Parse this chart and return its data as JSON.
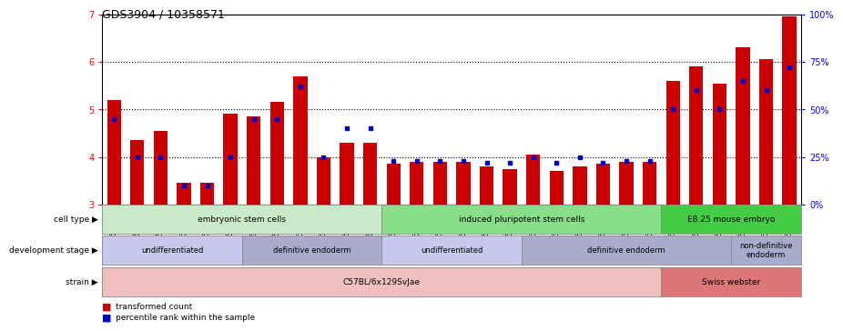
{
  "title": "GDS3904 / 10358571",
  "samples": [
    "GSM668567",
    "GSM668568",
    "GSM668569",
    "GSM668582",
    "GSM668583",
    "GSM668584",
    "GSM668564",
    "GSM668565",
    "GSM668566",
    "GSM668579",
    "GSM668580",
    "GSM668581",
    "GSM668585",
    "GSM668586",
    "GSM668587",
    "GSM668588",
    "GSM668589",
    "GSM668590",
    "GSM668576",
    "GSM668577",
    "GSM668578",
    "GSM668591",
    "GSM668592",
    "GSM668593",
    "GSM668573",
    "GSM668574",
    "GSM668575",
    "GSM668570",
    "GSM668571",
    "GSM668572"
  ],
  "red_values": [
    5.2,
    4.35,
    4.55,
    3.45,
    3.45,
    4.9,
    4.85,
    5.15,
    5.7,
    4.0,
    4.3,
    4.3,
    3.85,
    3.9,
    3.9,
    3.9,
    3.8,
    3.75,
    4.05,
    3.7,
    3.8,
    3.85,
    3.9,
    3.9,
    5.6,
    5.9,
    5.55,
    6.3,
    6.05,
    6.95
  ],
  "blue_values": [
    45,
    25,
    25,
    10,
    10,
    25,
    45,
    45,
    62,
    25,
    40,
    40,
    23,
    23,
    23,
    23,
    22,
    22,
    25,
    22,
    25,
    22,
    23,
    23,
    50,
    60,
    50,
    65,
    60,
    72
  ],
  "ylim_left": [
    3.0,
    7.0
  ],
  "ylim_right": [
    0,
    100
  ],
  "yticks_left": [
    3,
    4,
    5,
    6,
    7
  ],
  "yticks_right": [
    0,
    25,
    50,
    75,
    100
  ],
  "cell_type_groups": [
    {
      "label": "embryonic stem cells",
      "start": 0,
      "end": 11,
      "color": "#c8eac8"
    },
    {
      "label": "induced pluripotent stem cells",
      "start": 12,
      "end": 23,
      "color": "#88dd88"
    },
    {
      "label": "E8.25 mouse embryo",
      "start": 24,
      "end": 29,
      "color": "#44cc44"
    }
  ],
  "dev_stage_groups": [
    {
      "label": "undifferentiated",
      "start": 0,
      "end": 5,
      "color": "#c8c8ee"
    },
    {
      "label": "definitive endoderm",
      "start": 6,
      "end": 11,
      "color": "#aaaacc"
    },
    {
      "label": "undifferentiated",
      "start": 12,
      "end": 17,
      "color": "#c8c8ee"
    },
    {
      "label": "definitive endoderm",
      "start": 18,
      "end": 26,
      "color": "#aaaacc"
    },
    {
      "label": "non-definitive\nendoderm",
      "start": 27,
      "end": 29,
      "color": "#aaaacc"
    }
  ],
  "strain_groups": [
    {
      "label": "C57BL/6x129SvJae",
      "start": 0,
      "end": 23,
      "color": "#f0c0c0"
    },
    {
      "label": "Swiss webster",
      "start": 24,
      "end": 29,
      "color": "#dd7777"
    }
  ],
  "bar_color": "#cc0000",
  "marker_color": "#0000cc",
  "bg_color": "#ffffff"
}
